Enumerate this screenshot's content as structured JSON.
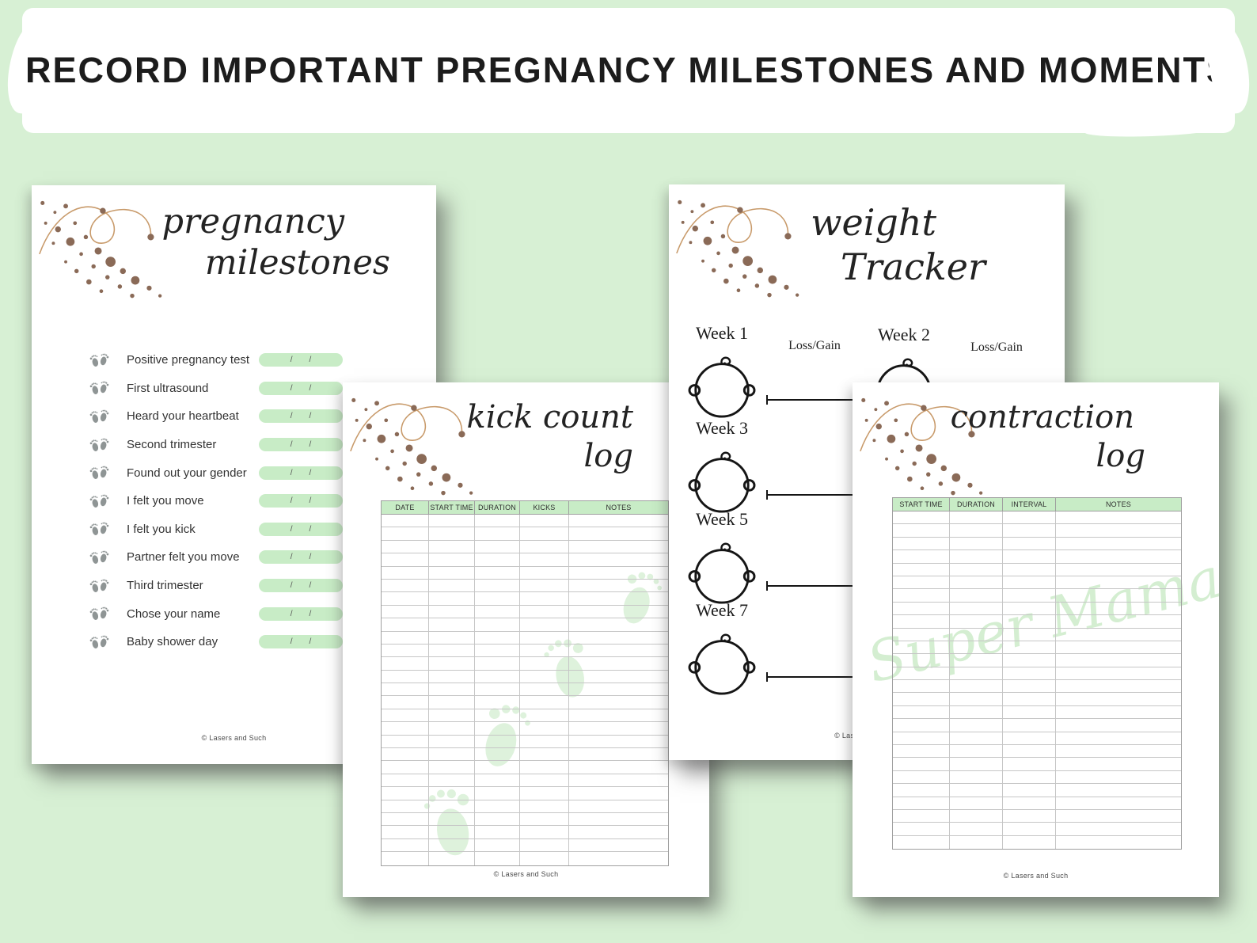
{
  "banner": {
    "title": "RECORD IMPORTANT PREGNANCY MILESTONES AND MOMENTS"
  },
  "colors": {
    "background_green": "#d7f0d4",
    "accent_green": "#c8ecc6",
    "watermark_green": "#d4eed1",
    "dot_brown": "#8a6a57",
    "swirl_tan": "#c89a6a",
    "text_dark": "#1f1f1f"
  },
  "pages": {
    "milestones": {
      "title_line1": "pregnancy",
      "title_line2": "milestones",
      "date_separator": "/",
      "items": [
        "Positive pregnancy test",
        "First ultrasound",
        "Heard your heartbeat",
        "Second trimester",
        "Found out your gender",
        "I felt you move",
        "I felt you kick",
        "Partner felt you move",
        "Third trimester",
        "Chose your name",
        "Baby shower day"
      ],
      "footer": "© Lasers and Such"
    },
    "kick_count": {
      "title_line1": "kick count",
      "title_line2": "log",
      "columns": [
        "DATE",
        "START TIME",
        "DURATION",
        "KICKS",
        "NOTES"
      ],
      "empty_rows": 27,
      "footer": "© Lasers and Such"
    },
    "weight_tracker": {
      "title_line1": "weight",
      "title_line2": "Tracker",
      "weeks": [
        {
          "label": "Week 1",
          "loss_gain": "Loss/Gain"
        },
        {
          "label": "Week 2",
          "loss_gain": "Loss/Gain"
        },
        {
          "label": "Week 3"
        },
        {
          "label": "Week 5"
        },
        {
          "label": "Week 7"
        }
      ],
      "footer": "© Lasers and Such"
    },
    "contraction": {
      "title_line1": "contraction",
      "title_line2": "log",
      "columns": [
        "START TIME",
        "DURATION",
        "INTERVAL",
        "NOTES"
      ],
      "empty_rows": 26,
      "watermark": "Super Mama",
      "footer": "© Lasers and Such"
    }
  }
}
